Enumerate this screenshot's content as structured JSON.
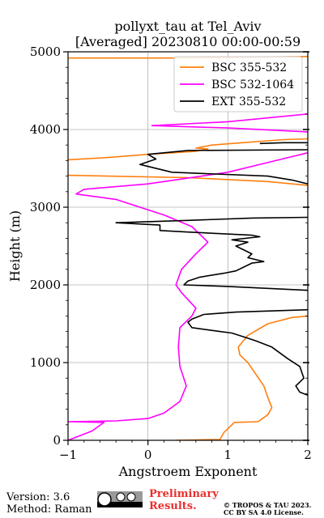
{
  "chart_data": {
    "type": "line",
    "title": "pollyxt_tau at Tel_Aviv",
    "subtitle": "[Averaged] 20230810 00:00-00:59",
    "xlabel": "Angstroem Exponent",
    "ylabel": "Height (m)",
    "xlim": [
      -1,
      2
    ],
    "ylim": [
      0,
      5000
    ],
    "x_ticks": [
      "−1",
      "0",
      "1",
      "2"
    ],
    "y_ticks": [
      "0",
      "1000",
      "2000",
      "3000",
      "4000",
      "5000"
    ],
    "grid": true,
    "legend_position": "top-right",
    "series": [
      {
        "name": "BSC 355-532",
        "color": "#ff7f0e",
        "points": [
          [
            0.35,
            0
          ],
          [
            0.9,
            10
          ],
          [
            0.95,
            100
          ],
          [
            1.08,
            230
          ],
          [
            1.38,
            240
          ],
          [
            1.5,
            330
          ],
          [
            1.55,
            420
          ],
          [
            1.5,
            550
          ],
          [
            1.45,
            700
          ],
          [
            1.35,
            850
          ],
          [
            1.25,
            1000
          ],
          [
            1.15,
            1100
          ],
          [
            1.13,
            1200
          ],
          [
            1.25,
            1350
          ],
          [
            1.5,
            1500
          ],
          [
            1.8,
            1580
          ],
          [
            2.0,
            1600
          ]
        ]
      },
      {
        "name": "BSC 355-532",
        "color": "#ff7f0e",
        "points": [
          [
            2.0,
            3280
          ],
          [
            1.5,
            3330
          ],
          [
            0.5,
            3380
          ],
          [
            -1.0,
            3410
          ]
        ]
      },
      {
        "name": "BSC 355-532",
        "color": "#ff7f0e",
        "points": [
          [
            -1.0,
            3610
          ],
          [
            -0.5,
            3640
          ],
          [
            0.0,
            3680
          ],
          [
            0.6,
            3720
          ],
          [
            0.75,
            3750
          ],
          [
            0.6,
            3760
          ],
          [
            0.8,
            3800
          ],
          [
            1.3,
            3840
          ],
          [
            1.7,
            3870
          ],
          [
            2.0,
            3880
          ]
        ]
      },
      {
        "name": "BSC 355-532",
        "color": "#ff7f0e",
        "points": [
          [
            -1.0,
            4920
          ],
          [
            0.5,
            4920
          ],
          [
            2.0,
            4940
          ]
        ]
      },
      {
        "name": "BSC 532-1064",
        "color": "#ff00ff",
        "points": [
          [
            -1.0,
            0
          ],
          [
            -0.7,
            120
          ],
          [
            -0.55,
            230
          ],
          [
            -1.0,
            240
          ],
          [
            -0.4,
            250
          ],
          [
            0.0,
            280
          ],
          [
            0.2,
            350
          ],
          [
            0.4,
            500
          ],
          [
            0.48,
            700
          ],
          [
            0.4,
            950
          ],
          [
            0.38,
            1200
          ],
          [
            0.4,
            1450
          ],
          [
            0.55,
            1600
          ],
          [
            0.6,
            1700
          ],
          [
            0.42,
            1900
          ],
          [
            0.35,
            2000
          ],
          [
            0.42,
            2200
          ],
          [
            0.6,
            2400
          ],
          [
            0.75,
            2550
          ],
          [
            0.55,
            2750
          ],
          [
            0.2,
            2900
          ],
          [
            -0.4,
            3100
          ],
          [
            -0.9,
            3170
          ],
          [
            -0.8,
            3230
          ],
          [
            0.0,
            3300
          ],
          [
            1.0,
            3450
          ],
          [
            1.6,
            3600
          ],
          [
            2.0,
            3700
          ]
        ]
      },
      {
        "name": "BSC 532-1064",
        "color": "#ff00ff",
        "points": [
          [
            2.0,
            3970
          ],
          [
            1.0,
            4020
          ],
          [
            0.05,
            4050
          ],
          [
            1.0,
            4100
          ],
          [
            2.0,
            4200
          ]
        ]
      },
      {
        "name": "EXT 355-532",
        "color": "#000000",
        "points": [
          [
            2.0,
            580
          ],
          [
            1.9,
            620
          ],
          [
            1.85,
            700
          ],
          [
            1.95,
            800
          ],
          [
            1.9,
            950
          ],
          [
            1.75,
            1050
          ],
          [
            1.55,
            1200
          ],
          [
            1.35,
            1280
          ],
          [
            1.2,
            1330
          ],
          [
            1.05,
            1380
          ],
          [
            0.9,
            1400
          ],
          [
            0.55,
            1450
          ],
          [
            0.5,
            1520
          ],
          [
            0.55,
            1560
          ],
          [
            0.7,
            1620
          ],
          [
            1.1,
            1650
          ],
          [
            2.0,
            1680
          ]
        ]
      },
      {
        "name": "EXT 355-532",
        "color": "#000000",
        "points": [
          [
            2.0,
            1930
          ],
          [
            1.0,
            1980
          ],
          [
            0.45,
            2000
          ],
          [
            0.5,
            2050
          ],
          [
            0.65,
            2100
          ],
          [
            0.95,
            2150
          ],
          [
            1.1,
            2180
          ],
          [
            1.2,
            2230
          ],
          [
            1.3,
            2280
          ],
          [
            1.45,
            2300
          ],
          [
            1.25,
            2350
          ],
          [
            1.3,
            2400
          ],
          [
            1.1,
            2500
          ],
          [
            1.25,
            2550
          ],
          [
            1.05,
            2580
          ],
          [
            1.4,
            2620
          ],
          [
            1.3,
            2640
          ],
          [
            0.5,
            2680
          ],
          [
            0.15,
            2700
          ],
          [
            0.15,
            2770
          ],
          [
            -0.4,
            2800
          ],
          [
            0.5,
            2830
          ],
          [
            1.3,
            2860
          ],
          [
            2.0,
            2870
          ]
        ]
      },
      {
        "name": "EXT 355-532",
        "color": "#000000",
        "points": [
          [
            2.0,
            3300
          ],
          [
            1.8,
            3350
          ],
          [
            1.5,
            3400
          ],
          [
            0.3,
            3450
          ],
          [
            -0.1,
            3550
          ],
          [
            0.1,
            3620
          ],
          [
            0.0,
            3680
          ],
          [
            0.5,
            3730
          ],
          [
            2.0,
            3740
          ]
        ]
      },
      {
        "name": "EXT 355-532",
        "color": "#000000",
        "points": [
          [
            1.4,
            3820
          ],
          [
            1.7,
            3830
          ],
          [
            2.0,
            3830
          ]
        ]
      }
    ],
    "legend": [
      {
        "label": "BSC 355-532",
        "color": "#ff7f0e"
      },
      {
        "label": "BSC 532-1064",
        "color": "#ff00ff"
      },
      {
        "label": "EXT 355-532",
        "color": "#000000"
      }
    ]
  },
  "footer": {
    "version": "Version: 3.6",
    "method": "Method: Raman",
    "preliminary_line1": "Preliminary",
    "preliminary_line2": "Results.",
    "copyright_line1": "© TROPOS & TAU 2023.",
    "copyright_line2": "CC BY SA 4.0 License.",
    "license_logo": "cc-by-sa-icon"
  }
}
